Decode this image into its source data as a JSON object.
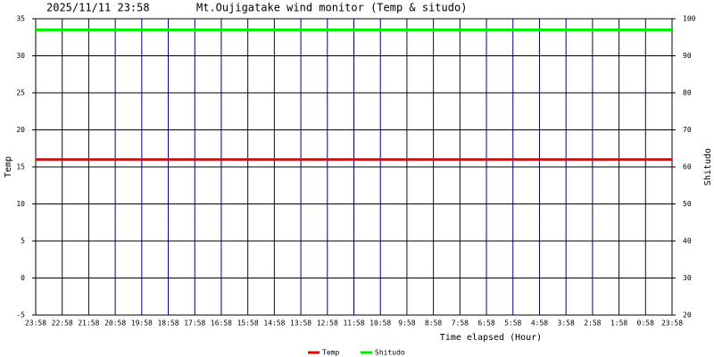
{
  "chart_data": {
    "type": "line",
    "timestamp": "2025/11/11 23:58",
    "title": "Mt.Oujigatake wind monitor (Temp & situdo)",
    "x_label": "Time elapsed (Hour)",
    "y_label": "Temp",
    "y2_label": "Shitudo",
    "categories": [
      "23:58",
      "22:58",
      "21:58",
      "20:58",
      "19:58",
      "18:58",
      "17:58",
      "16:58",
      "15:58",
      "14:58",
      "13:58",
      "12:58",
      "11:58",
      "10:58",
      "9:58",
      "8:58",
      "7:58",
      "6:58",
      "5:58",
      "4:58",
      "3:58",
      "2:58",
      "1:58",
      "0:58",
      "23:58"
    ],
    "series": [
      {
        "name": "Temp",
        "color": "#ee0000",
        "values": [
          16,
          16,
          16,
          16,
          16,
          16,
          16,
          16,
          16,
          16,
          16,
          16,
          16,
          16,
          16,
          16,
          16,
          16,
          16,
          16,
          16,
          16,
          16,
          16,
          16
        ]
      },
      {
        "name": "Shitudo",
        "color": "#00ee00",
        "axis": "y2",
        "values": [
          97,
          97,
          97,
          97,
          97,
          97,
          97,
          97,
          97,
          97,
          97,
          97,
          97,
          97,
          97,
          97,
          97,
          97,
          97,
          97,
          97,
          97,
          97,
          97,
          97
        ]
      }
    ],
    "ylim": [
      -5,
      35
    ],
    "yticks": [
      -5,
      0,
      5,
      10,
      15,
      20,
      25,
      30,
      35
    ],
    "y2lim": [
      20,
      100
    ],
    "y2ticks": [
      20,
      30,
      40,
      50,
      60,
      70,
      80,
      90,
      100
    ],
    "grid": true
  }
}
